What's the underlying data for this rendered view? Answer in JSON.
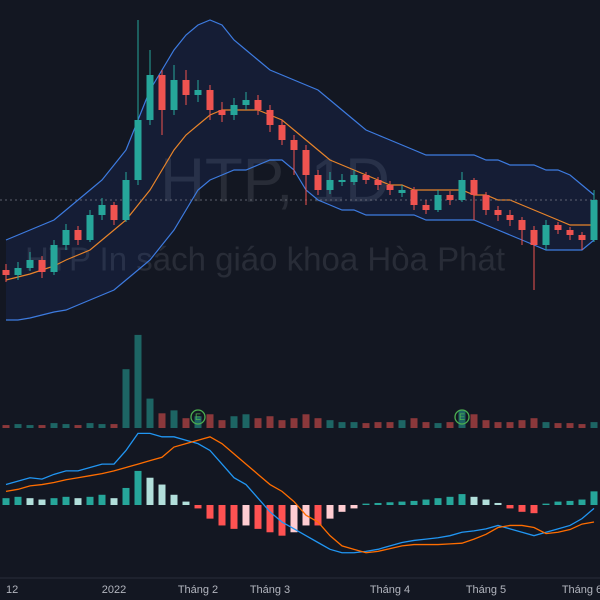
{
  "chart_data": {
    "type": "candlestick",
    "watermark_title": "HTP, 1D",
    "watermark_subtitle": "HTP In sách giáo khoa Hòa Phát",
    "categories": [
      "12",
      null,
      null,
      null,
      null,
      null,
      null,
      null,
      null,
      "2022",
      null,
      null,
      null,
      null,
      null,
      null,
      "Tháng 2",
      null,
      null,
      null,
      null,
      null,
      "Tháng 3",
      null,
      null,
      null,
      null,
      null,
      null,
      null,
      null,
      null,
      "Tháng 4",
      null,
      null,
      null,
      null,
      null,
      null,
      null,
      "Tháng 5",
      null,
      null,
      null,
      null,
      null,
      null,
      null,
      "Tháng 6",
      null
    ],
    "open": [
      8.0,
      7.5,
      8.2,
      9.0,
      7.8,
      10.5,
      12.0,
      11.0,
      13.5,
      14.5,
      13.0,
      17.0,
      23.0,
      27.5,
      24.0,
      27.0,
      25.5,
      26.0,
      24.0,
      23.5,
      24.5,
      25.0,
      24.0,
      22.5,
      21.0,
      20.0,
      17.5,
      16.0,
      16.8,
      16.8,
      17.5,
      17.0,
      16.5,
      15.7,
      16.0,
      14.5,
      14.0,
      15.5,
      15.0,
      17.0,
      15.5,
      14.0,
      13.5,
      13.0,
      12.0,
      10.5,
      12.5,
      12.0,
      11.5,
      11.0
    ],
    "high": [
      8.6,
      8.8,
      9.8,
      9.4,
      11.0,
      12.6,
      12.4,
      14.0,
      15.2,
      14.8,
      17.8,
      33.0,
      30.0,
      28.0,
      28.5,
      28.0,
      27.0,
      26.5,
      24.8,
      25.2,
      25.8,
      25.5,
      24.5,
      23.0,
      21.5,
      20.5,
      18.0,
      17.8,
      17.6,
      18.0,
      17.8,
      17.3,
      16.9,
      16.5,
      16.3,
      15.0,
      16.0,
      15.9,
      17.8,
      17.2,
      15.8,
      14.4,
      14.0,
      13.3,
      12.4,
      13.0,
      12.8,
      12.3,
      11.8,
      16.0
    ],
    "low": [
      6.8,
      7.0,
      7.9,
      7.2,
      7.5,
      10.0,
      10.5,
      10.8,
      13.0,
      12.5,
      12.8,
      16.5,
      22.5,
      21.5,
      23.5,
      24.5,
      24.8,
      23.0,
      22.8,
      23.0,
      24.0,
      23.5,
      21.8,
      20.5,
      17.5,
      14.5,
      15.5,
      15.6,
      16.4,
      16.5,
      16.6,
      16.0,
      15.5,
      15.3,
      14.0,
      13.6,
      13.8,
      14.5,
      14.8,
      13.0,
      13.5,
      12.9,
      12.4,
      10.5,
      6.0,
      10.0,
      11.6,
      11.0,
      10.0,
      10.8
    ],
    "close": [
      7.5,
      8.2,
      9.0,
      7.8,
      10.5,
      12.0,
      11.0,
      13.5,
      14.5,
      13.0,
      17.0,
      23.0,
      27.5,
      24.0,
      27.0,
      25.5,
      26.0,
      24.0,
      23.5,
      24.5,
      25.0,
      24.0,
      22.5,
      21.0,
      20.0,
      17.5,
      16.0,
      17.0,
      17.0,
      17.5,
      17.0,
      16.5,
      16.0,
      16.0,
      14.5,
      14.0,
      15.5,
      15.0,
      17.0,
      15.5,
      14.0,
      13.5,
      13.0,
      12.0,
      10.5,
      12.5,
      12.0,
      11.5,
      11.0,
      15.0
    ],
    "ylim": [
      0,
      35
    ],
    "up_color": "#26a69a",
    "down_color": "#ef5350",
    "bb_upper": {
      "color": "#3d7be0",
      "values": [
        11,
        11.5,
        12,
        12.5,
        13,
        14,
        15,
        16,
        17,
        18.5,
        20,
        23,
        26,
        28,
        30,
        31.5,
        32.5,
        33,
        32.5,
        31,
        30,
        29,
        28,
        27.5,
        27,
        26.5,
        26,
        25,
        24,
        23,
        22,
        21.5,
        21,
        20.5,
        20,
        19.5,
        19.5,
        19.5,
        19.5,
        19.5,
        19,
        19,
        18.5,
        18.5,
        18.5,
        18,
        18,
        17.5,
        16.5,
        15.5
      ]
    },
    "bb_lower": {
      "color": "#3d7be0",
      "values": [
        3,
        3,
        3.2,
        3.5,
        3.8,
        4,
        4.5,
        5,
        5.5,
        6,
        7,
        8,
        9,
        10.5,
        12,
        14,
        16,
        17,
        17.5,
        18,
        18,
        18.5,
        19,
        19,
        18,
        16,
        15,
        14.5,
        14,
        14,
        13.5,
        13.5,
        13.5,
        13.5,
        13.5,
        13,
        13,
        13,
        13,
        13,
        12.5,
        12,
        11.5,
        11,
        10.5,
        10,
        10,
        10,
        10,
        11
      ]
    },
    "bb_basis": {
      "color": "#e8842a",
      "values": [
        7,
        7.3,
        7.6,
        8,
        8.4,
        9,
        9.5,
        10,
        11,
        12,
        13,
        14.5,
        16,
        18,
        20,
        21.5,
        22.5,
        23.5,
        24,
        24,
        24,
        24,
        23.5,
        23,
        22,
        21,
        20,
        19,
        18.5,
        18,
        17.5,
        17,
        16.5,
        16.5,
        16,
        16,
        16,
        16,
        16,
        15.5,
        15.5,
        15,
        15,
        14.5,
        14,
        13.5,
        13,
        12.5,
        12.5,
        12.5
      ]
    },
    "volume": {
      "ylim": [
        0,
        100
      ],
      "values": [
        3,
        4,
        3,
        3,
        5,
        4,
        3,
        5,
        4,
        4,
        60,
        95,
        30,
        15,
        18,
        10,
        12,
        14,
        8,
        12,
        14,
        10,
        12,
        8,
        10,
        14,
        10,
        8,
        6,
        6,
        5,
        6,
        6,
        8,
        10,
        6,
        5,
        6,
        18,
        14,
        8,
        6,
        6,
        8,
        10,
        6,
        5,
        5,
        4,
        6
      ]
    },
    "earnings_markers": [
      {
        "index": 16,
        "label": "E"
      },
      {
        "index": 38,
        "label": "E"
      }
    ],
    "macd": {
      "ylim": [
        -1.1,
        1.1
      ],
      "histogram": [
        0.1,
        0.12,
        0.1,
        0.08,
        0.1,
        0.12,
        0.1,
        0.12,
        0.15,
        0.1,
        0.25,
        0.5,
        0.4,
        0.3,
        0.15,
        0.05,
        -0.05,
        -0.2,
        -0.3,
        -0.35,
        -0.3,
        -0.35,
        -0.4,
        -0.45,
        -0.4,
        -0.3,
        -0.3,
        -0.2,
        -0.1,
        -0.05,
        0.02,
        0.03,
        0.04,
        0.05,
        0.06,
        0.08,
        0.1,
        0.12,
        0.16,
        0.12,
        0.08,
        0.03,
        -0.05,
        -0.1,
        -0.12,
        0.02,
        0.05,
        0.06,
        0.08,
        0.2
      ],
      "macd_color": "#2196f3",
      "macd_line": [
        0.3,
        0.35,
        0.4,
        0.38,
        0.45,
        0.5,
        0.5,
        0.55,
        0.6,
        0.6,
        0.8,
        1.05,
        1.05,
        1.0,
        1.0,
        0.95,
        0.9,
        0.8,
        0.6,
        0.4,
        0.3,
        0.1,
        -0.1,
        -0.25,
        -0.35,
        -0.45,
        -0.55,
        -0.65,
        -0.7,
        -0.7,
        -0.68,
        -0.65,
        -0.6,
        -0.55,
        -0.52,
        -0.5,
        -0.48,
        -0.45,
        -0.4,
        -0.38,
        -0.35,
        -0.3,
        -0.35,
        -0.4,
        -0.45,
        -0.4,
        -0.35,
        -0.3,
        -0.2,
        -0.05
      ],
      "signal_color": "#ff6d00",
      "signal_line": [
        0.2,
        0.23,
        0.28,
        0.3,
        0.33,
        0.37,
        0.4,
        0.43,
        0.46,
        0.5,
        0.55,
        0.6,
        0.65,
        0.7,
        0.85,
        0.9,
        0.95,
        1.0,
        0.9,
        0.75,
        0.6,
        0.45,
        0.3,
        0.2,
        0.05,
        -0.15,
        -0.25,
        -0.45,
        -0.6,
        -0.65,
        -0.7,
        -0.68,
        -0.64,
        -0.6,
        -0.58,
        -0.58,
        -0.58,
        -0.57,
        -0.56,
        -0.5,
        -0.43,
        -0.33,
        -0.3,
        -0.3,
        -0.33,
        -0.42,
        -0.4,
        -0.36,
        -0.28,
        -0.25
      ]
    }
  }
}
